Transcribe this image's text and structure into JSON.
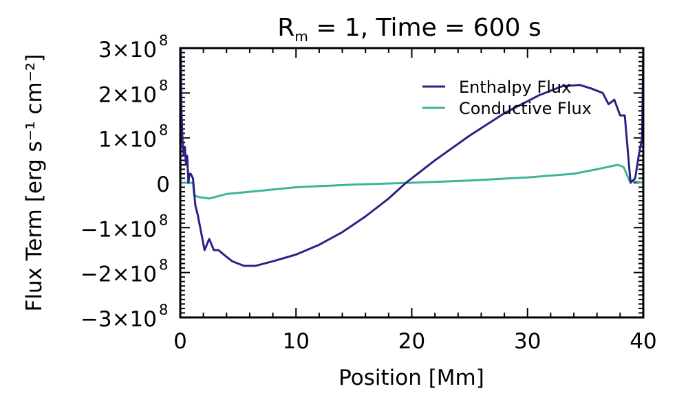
{
  "chart_data": {
    "type": "line",
    "title": {
      "main": "R",
      "sub": "m",
      "rest": " = 1, Time = 600 s"
    },
    "xlabel": "Position [Mm]",
    "ylabel": "Flux Term [erg s⁻¹ cm⁻²]",
    "xlim": [
      0,
      40
    ],
    "ylim": [
      -300000000.0,
      300000000.0
    ],
    "x_ticks": [
      {
        "value": 0,
        "label": "0"
      },
      {
        "value": 10,
        "label": "10"
      },
      {
        "value": 20,
        "label": "20"
      },
      {
        "value": 30,
        "label": "30"
      },
      {
        "value": 40,
        "label": "40"
      }
    ],
    "y_ticks": [
      {
        "value": 300000000.0,
        "mant": "3×10",
        "exp": "8"
      },
      {
        "value": 200000000.0,
        "mant": "2×10",
        "exp": "8"
      },
      {
        "value": 100000000.0,
        "mant": "1×10",
        "exp": "8"
      },
      {
        "value": 0,
        "mant": "0",
        "exp": ""
      },
      {
        "value": -100000000.0,
        "mant": "−1×10",
        "exp": "8"
      },
      {
        "value": -200000000.0,
        "mant": "−2×10",
        "exp": "8"
      },
      {
        "value": -300000000.0,
        "mant": "−3×10",
        "exp": "8"
      }
    ],
    "grid": false,
    "legend_position": "top-right",
    "series": [
      {
        "name": "Enthalpy Flux",
        "color": "#2e2185",
        "x": [
          0.0,
          0.05,
          0.1,
          0.2,
          0.3,
          0.4,
          0.5,
          0.6,
          0.7,
          0.8,
          0.9,
          1.1,
          1.2,
          1.3,
          1.5,
          1.8,
          2.1,
          2.5,
          2.9,
          3.3,
          4.0,
          4.5,
          5.0,
          5.5,
          6.5,
          8,
          10,
          12,
          14,
          16,
          18,
          19.5,
          22,
          25,
          28,
          31,
          33,
          34.5,
          35.5,
          36.5,
          37,
          37.5,
          38,
          38.4,
          38.7,
          38.9,
          39.3,
          39.6,
          39.9,
          40.0,
          40.0
        ],
        "y": [
          -60000000.0,
          300000000.0,
          160000000.0,
          90000000.0,
          60000000.0,
          80000000.0,
          40000000.0,
          60000000.0,
          0.0,
          20000000.0,
          20000000.0,
          10000000.0,
          -20000000.0,
          -50000000.0,
          -70000000.0,
          -110000000.0,
          -150000000.0,
          -125000000.0,
          -150000000.0,
          -150000000.0,
          -165000000.0,
          -175000000.0,
          -180000000.0,
          -185000000.0,
          -185000000.0,
          -175000000.0,
          -160000000.0,
          -138000000.0,
          -110000000.0,
          -75000000.0,
          -35000000.0,
          0.0,
          50000000.0,
          105000000.0,
          155000000.0,
          195000000.0,
          215000000.0,
          218000000.0,
          210000000.0,
          200000000.0,
          175000000.0,
          185000000.0,
          150000000.0,
          150000000.0,
          60000000.0,
          0.0,
          10000000.0,
          60000000.0,
          100000000.0,
          300000000.0,
          -300000000.0
        ]
      },
      {
        "name": "Conductive Flux",
        "color": "#3db39c",
        "x": [
          0,
          1.1,
          1.2,
          1.6,
          2.5,
          4,
          6,
          10,
          15,
          20,
          25,
          30,
          34,
          36,
          37.8,
          38.3,
          38.8,
          40
        ],
        "y": [
          0,
          0,
          -28000000.0,
          -32000000.0,
          -35000000.0,
          -25000000.0,
          -20000000.0,
          -10000000.0,
          -4000000.0,
          0.0,
          5000000.0,
          12000000.0,
          20000000.0,
          30000000.0,
          40000000.0,
          35000000.0,
          5000000.0,
          0.0
        ]
      }
    ]
  }
}
